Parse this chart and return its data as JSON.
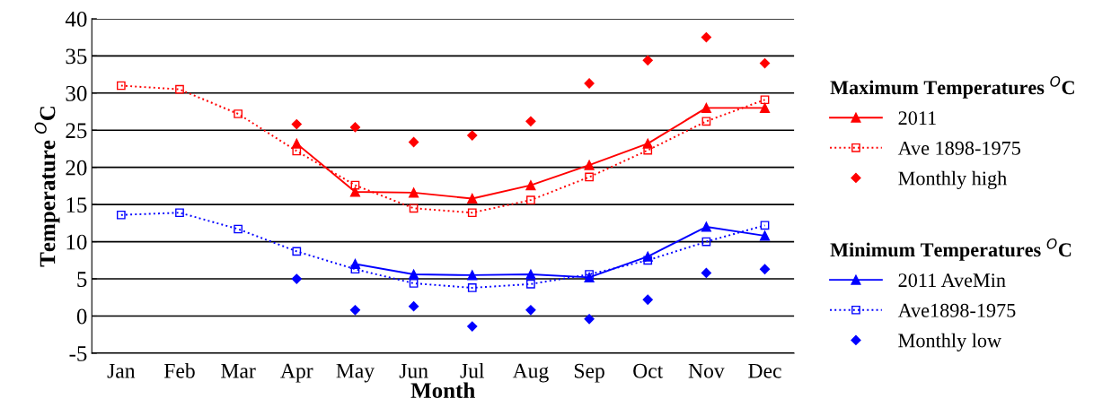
{
  "chart_data": {
    "type": "line",
    "xlabel": "Month",
    "ylabel": "Temperature $^{O}$C",
    "legend_title": "Maximum Temperatures $^{O}$C",
    "annotations": [
      "Minimum Temperatures $^{O}$C"
    ],
    "categories": [
      "Jan",
      "Feb",
      "Mar",
      "Apr",
      "May",
      "Jun",
      "Jul",
      "Aug",
      "Sep",
      "Oct",
      "Nov",
      "Dec"
    ],
    "ylim": [
      -5,
      40
    ],
    "yticks": [
      -5,
      0,
      5,
      10,
      15,
      20,
      25,
      30,
      35,
      40
    ],
    "grid": "y",
    "legend": "right",
    "series": [
      {
        "name": "2011",
        "color": "#ff0000",
        "marker": "triangle",
        "line_style": "solid",
        "values": [
          null,
          null,
          null,
          23.2,
          16.7,
          16.6,
          15.8,
          17.6,
          20.3,
          23.2,
          28.0,
          28.0
        ]
      },
      {
        "name": "Ave 1898-1975",
        "color": "#ff0000",
        "marker": "square",
        "line_style": "dotted",
        "values": [
          31.0,
          30.5,
          27.2,
          22.2,
          17.6,
          14.5,
          13.9,
          15.6,
          18.7,
          22.3,
          26.2,
          29.1
        ]
      },
      {
        "name": "Monthly high",
        "color": "#ff0000",
        "type": "scatter",
        "marker": "diamond",
        "values": [
          null,
          null,
          null,
          25.8,
          25.4,
          23.4,
          24.3,
          26.2,
          31.3,
          34.4,
          37.5,
          34.0
        ]
      },
      {
        "name": "2011 AveMin",
        "color": "#0000ff",
        "marker": "triangle",
        "line_style": "solid",
        "values": [
          null,
          null,
          null,
          null,
          7.0,
          5.6,
          5.5,
          5.6,
          5.2,
          8.0,
          12.0,
          10.8
        ]
      },
      {
        "name": "Ave1898-1975",
        "color": "#0000ff",
        "marker": "square",
        "line_style": "dotted",
        "values": [
          13.6,
          13.9,
          11.7,
          8.7,
          6.3,
          4.4,
          3.8,
          4.3,
          5.6,
          7.5,
          10.0,
          12.2
        ]
      },
      {
        "name": "Monthly low",
        "color": "#0000ff",
        "type": "scatter",
        "marker": "diamond",
        "values": [
          null,
          null,
          null,
          5.0,
          0.8,
          1.3,
          -1.4,
          0.8,
          -0.4,
          2.2,
          5.8,
          6.3
        ]
      }
    ]
  }
}
